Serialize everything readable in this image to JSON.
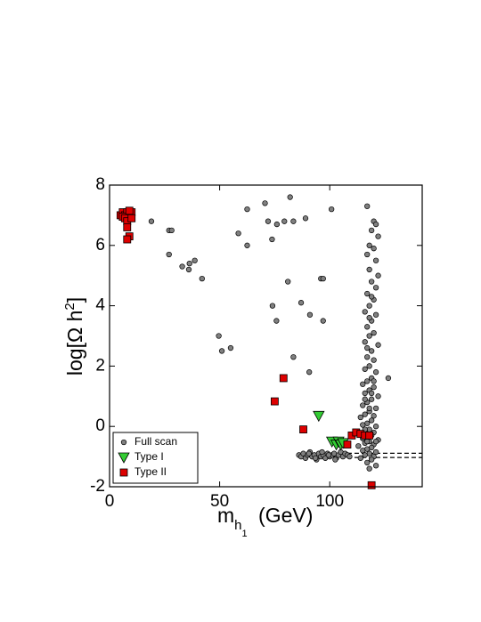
{
  "chart_data": {
    "type": "scatter",
    "xlabel": {
      "base": "m",
      "sub": "h",
      "subsub": "1",
      "rest": " (GeV)"
    },
    "ylabel": {
      "base": "log[Ω h",
      "sup": "2",
      "close": "]"
    },
    "xlim": [
      0,
      142
    ],
    "ylim": [
      -2,
      8
    ],
    "xticks": [
      0,
      50,
      100
    ],
    "yticks": [
      -2,
      0,
      2,
      4,
      6,
      8
    ],
    "legend": "lower left",
    "reference_lines": [
      {
        "y": -0.89,
        "xrange": [
          108,
          142
        ]
      },
      {
        "y": -1.03,
        "xrange": [
          108,
          142
        ]
      }
    ],
    "series": [
      {
        "name": "Full scan",
        "color": "#808080",
        "marker": "circle",
        "x": [
          19,
          27,
          28.2,
          27,
          33,
          36.3,
          38.7,
          36,
          42,
          49.6,
          51,
          55,
          58.5,
          62.5,
          62.5,
          70.6,
          72,
          73.8,
          76,
          79.4,
          82,
          83.5,
          89,
          74,
          75.8,
          81,
          87,
          91,
          96,
          97,
          97,
          83.5,
          90.7,
          100.8,
          117,
          126.6,
          86,
          87,
          88,
          89,
          90,
          91,
          92,
          93,
          94,
          95,
          96,
          97,
          98,
          99,
          100,
          101,
          102,
          103,
          104,
          105,
          106,
          107,
          108,
          109,
          90.5,
          93.5,
          96.5,
          99.5,
          102.5,
          120,
          121,
          119,
          122,
          118,
          120,
          117,
          121,
          118,
          122,
          119,
          121,
          117,
          120,
          118,
          116,
          121,
          119,
          117,
          120,
          118,
          116,
          122,
          119,
          117,
          120,
          118,
          116,
          121,
          119,
          117,
          115,
          120,
          118,
          116,
          122,
          119,
          117,
          115,
          121,
          118,
          116,
          120,
          114,
          119,
          117,
          115,
          121,
          118,
          116,
          120,
          114,
          119,
          117,
          115,
          122,
          118,
          116,
          120,
          113,
          119,
          117,
          115,
          121,
          118,
          116,
          120,
          114,
          119,
          117,
          121,
          118,
          116,
          118,
          120,
          117,
          119,
          116,
          121,
          118,
          119,
          117
        ],
        "values": [
          6.8,
          6.5,
          6.5,
          5.7,
          5.3,
          5.4,
          5.5,
          5.2,
          4.9,
          3.0,
          2.5,
          2.6,
          6.4,
          7.2,
          6.0,
          7.4,
          6.8,
          6.2,
          6.7,
          6.8,
          7.6,
          6.8,
          6.9,
          4.0,
          3.5,
          4.8,
          4.1,
          3.7,
          4.9,
          4.9,
          3.5,
          2.3,
          1.8,
          7.2,
          7.3,
          1.6,
          -0.95,
          -1.0,
          -0.9,
          -1.05,
          -0.95,
          -0.85,
          -1.0,
          -0.95,
          -1.1,
          -0.9,
          -1.0,
          -0.95,
          -1.05,
          -0.9,
          -1.0,
          -0.95,
          -0.9,
          -1.05,
          -0.95,
          -0.85,
          -1.0,
          -0.9,
          -0.95,
          -1.0,
          -0.9,
          -1.05,
          -0.85,
          -0.95,
          -1.1,
          6.8,
          6.7,
          6.5,
          6.3,
          6.0,
          5.9,
          5.7,
          5.5,
          5.2,
          5.0,
          4.8,
          4.6,
          4.4,
          4.2,
          4.0,
          3.8,
          3.7,
          3.5,
          3.3,
          3.1,
          3.0,
          2.8,
          2.7,
          2.5,
          2.3,
          2.2,
          2.0,
          1.9,
          1.8,
          1.6,
          1.5,
          1.4,
          1.3,
          1.2,
          1.1,
          1.0,
          0.9,
          0.8,
          0.7,
          0.6,
          0.5,
          0.4,
          0.35,
          0.3,
          0.2,
          0.1,
          0.05,
          0.0,
          -0.1,
          -0.15,
          -0.2,
          -0.25,
          -0.3,
          -0.35,
          -0.4,
          -0.45,
          -0.5,
          -0.55,
          -0.6,
          -0.65,
          -0.7,
          -0.75,
          -0.8,
          -0.85,
          -0.9,
          -0.95,
          -1.0,
          -1.05,
          -1.1,
          -1.2,
          -1.3,
          -1.4,
          -0.1,
          0.6,
          1.5,
          2.6,
          4.3,
          0.9,
          -0.5,
          3.6,
          1.1,
          -0.5
        ]
      },
      {
        "name": "Type I",
        "color": "#33cc33",
        "marker": "triangle-down",
        "x": [
          95,
          101,
          103,
          104,
          105,
          106
        ],
        "values": [
          0.35,
          -0.5,
          -0.6,
          -0.5,
          -0.6,
          -0.55
        ]
      },
      {
        "name": "Type II",
        "color": "#dd0000",
        "marker": "square",
        "x": [
          5,
          6,
          7,
          8,
          9,
          10,
          6,
          7,
          8,
          9,
          8,
          9,
          8,
          10,
          75,
          79,
          88,
          108,
          110,
          112,
          114,
          116,
          118,
          119
        ],
        "values": [
          7.0,
          7.1,
          7.0,
          7.1,
          7.0,
          7.1,
          6.95,
          6.9,
          6.8,
          7.15,
          6.6,
          6.3,
          6.2,
          6.9,
          0.83,
          1.6,
          -0.1,
          -0.6,
          -0.3,
          -0.2,
          -0.25,
          -0.3,
          -0.3,
          -1.95
        ]
      }
    ]
  }
}
